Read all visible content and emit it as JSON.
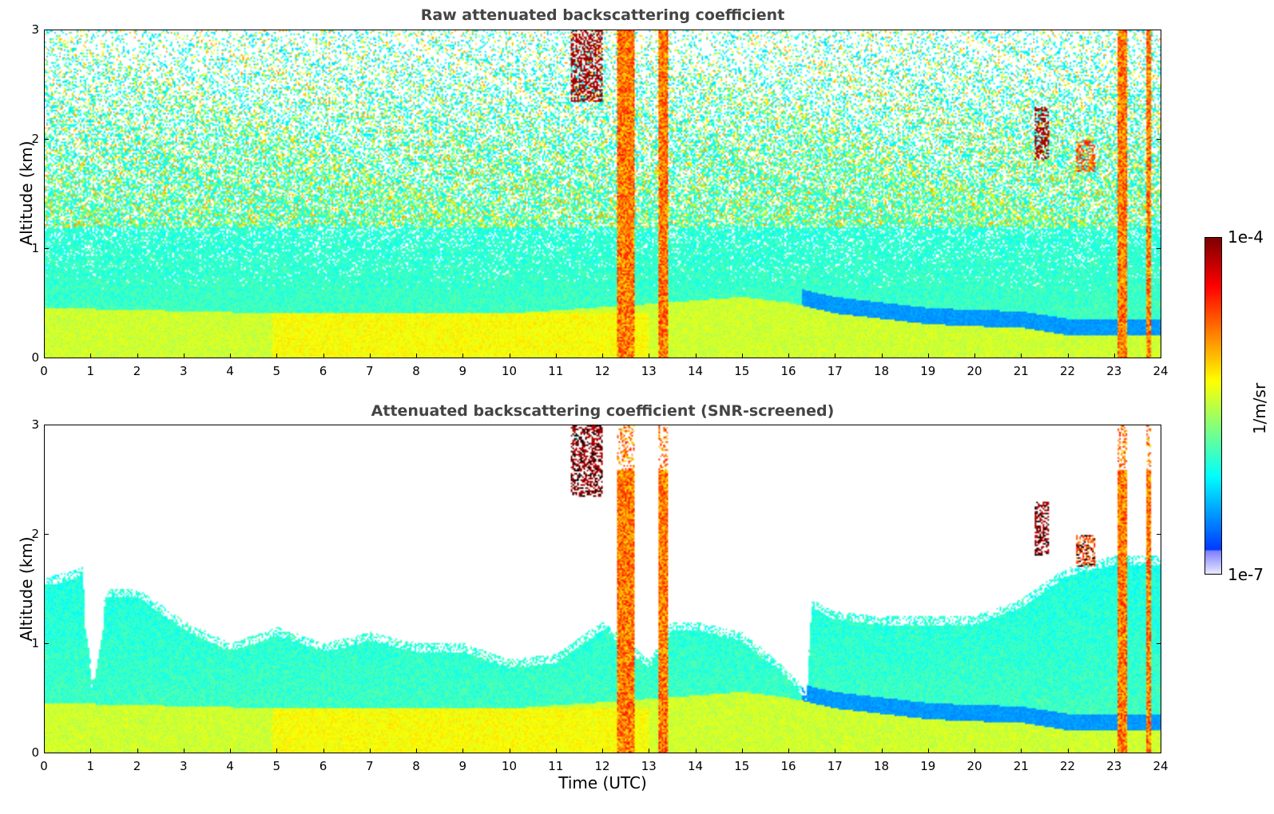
{
  "chart_data": [
    {
      "type": "heatmap",
      "title": "Raw attenuated backscattering coefficient",
      "xlabel": "",
      "ylabel": "Altitude (km)",
      "xlim": [
        0,
        24
      ],
      "ylim": [
        0,
        3
      ],
      "x_ticks": [
        "0",
        "1",
        "2",
        "3",
        "4",
        "5",
        "6",
        "7",
        "8",
        "9",
        "10",
        "11",
        "12",
        "13",
        "14",
        "15",
        "16",
        "17",
        "18",
        "19",
        "20",
        "21",
        "22",
        "23",
        "24"
      ],
      "y_ticks": [
        "0",
        "1",
        "2",
        "3"
      ],
      "mode": "raw",
      "features": [
        {
          "kind": "aerosol_layer_top_km_vs_time",
          "points": [
            [
              0,
              0.45
            ],
            [
              5,
              0.4
            ],
            [
              10,
              0.4
            ],
            [
              13.5,
              0.5
            ],
            [
              15,
              0.55
            ],
            [
              16,
              0.5
            ],
            [
              17,
              0.4
            ],
            [
              18,
              0.35
            ],
            [
              19,
              0.3
            ],
            [
              20,
              0.28
            ],
            [
              21,
              0.27
            ],
            [
              22,
              0.2
            ],
            [
              23,
              0.2
            ],
            [
              24,
              0.2
            ]
          ]
        },
        {
          "kind": "cloud",
          "x": [
            11.3,
            12.0
          ],
          "y_km": [
            2.35,
            3.0
          ],
          "level": "1e-4"
        },
        {
          "kind": "cloud",
          "x": [
            21.3,
            21.6
          ],
          "y_km": [
            1.8,
            2.3
          ],
          "level": "1e-4"
        },
        {
          "kind": "cloud",
          "x": [
            22.2,
            22.6
          ],
          "y_km": [
            1.7,
            2.0
          ],
          "level": "1e-5"
        },
        {
          "kind": "precipitation_column",
          "x": [
            12.3,
            12.7
          ]
        },
        {
          "kind": "precipitation_column",
          "x": [
            13.2,
            13.4
          ]
        },
        {
          "kind": "precipitation_column",
          "x": [
            23.1,
            23.3
          ]
        },
        {
          "kind": "precipitation_column",
          "x": [
            23.7,
            23.8
          ]
        }
      ]
    },
    {
      "type": "heatmap",
      "title": "Attenuated backscattering coefficient (SNR-screened)",
      "xlabel": "Time (UTC)",
      "ylabel": "Altitude (km)",
      "xlim": [
        0,
        24
      ],
      "ylim": [
        0,
        3
      ],
      "x_ticks": [
        "0",
        "1",
        "2",
        "3",
        "4",
        "5",
        "6",
        "7",
        "8",
        "9",
        "10",
        "11",
        "12",
        "13",
        "14",
        "15",
        "16",
        "17",
        "18",
        "19",
        "20",
        "21",
        "22",
        "23",
        "24"
      ],
      "y_ticks": [
        "0",
        "1",
        "2",
        "3"
      ],
      "mode": "screened",
      "signal_top_km_vs_time": [
        [
          0,
          1.6
        ],
        [
          0.8,
          1.7
        ],
        [
          1.0,
          0.65
        ],
        [
          1.3,
          1.5
        ],
        [
          2,
          1.5
        ],
        [
          3,
          1.2
        ],
        [
          4,
          1.0
        ],
        [
          5,
          1.15
        ],
        [
          6,
          1.0
        ],
        [
          7,
          1.1
        ],
        [
          8,
          1.0
        ],
        [
          9,
          1.0
        ],
        [
          10,
          0.85
        ],
        [
          11,
          0.9
        ],
        [
          12,
          1.2
        ],
        [
          13,
          0.85
        ],
        [
          13.5,
          1.2
        ],
        [
          14,
          1.2
        ],
        [
          15,
          1.1
        ],
        [
          16,
          0.75
        ],
        [
          16.4,
          0.55
        ],
        [
          16.5,
          1.4
        ],
        [
          17,
          1.3
        ],
        [
          18,
          1.25
        ],
        [
          19,
          1.25
        ],
        [
          20,
          1.25
        ],
        [
          21,
          1.4
        ],
        [
          22,
          1.7
        ],
        [
          23,
          1.8
        ],
        [
          24,
          1.8
        ]
      ]
    }
  ],
  "colorbar": {
    "max_label": "1e-4",
    "min_label": "1e-7",
    "unit": "1/m/sr",
    "colormap": "jet"
  }
}
